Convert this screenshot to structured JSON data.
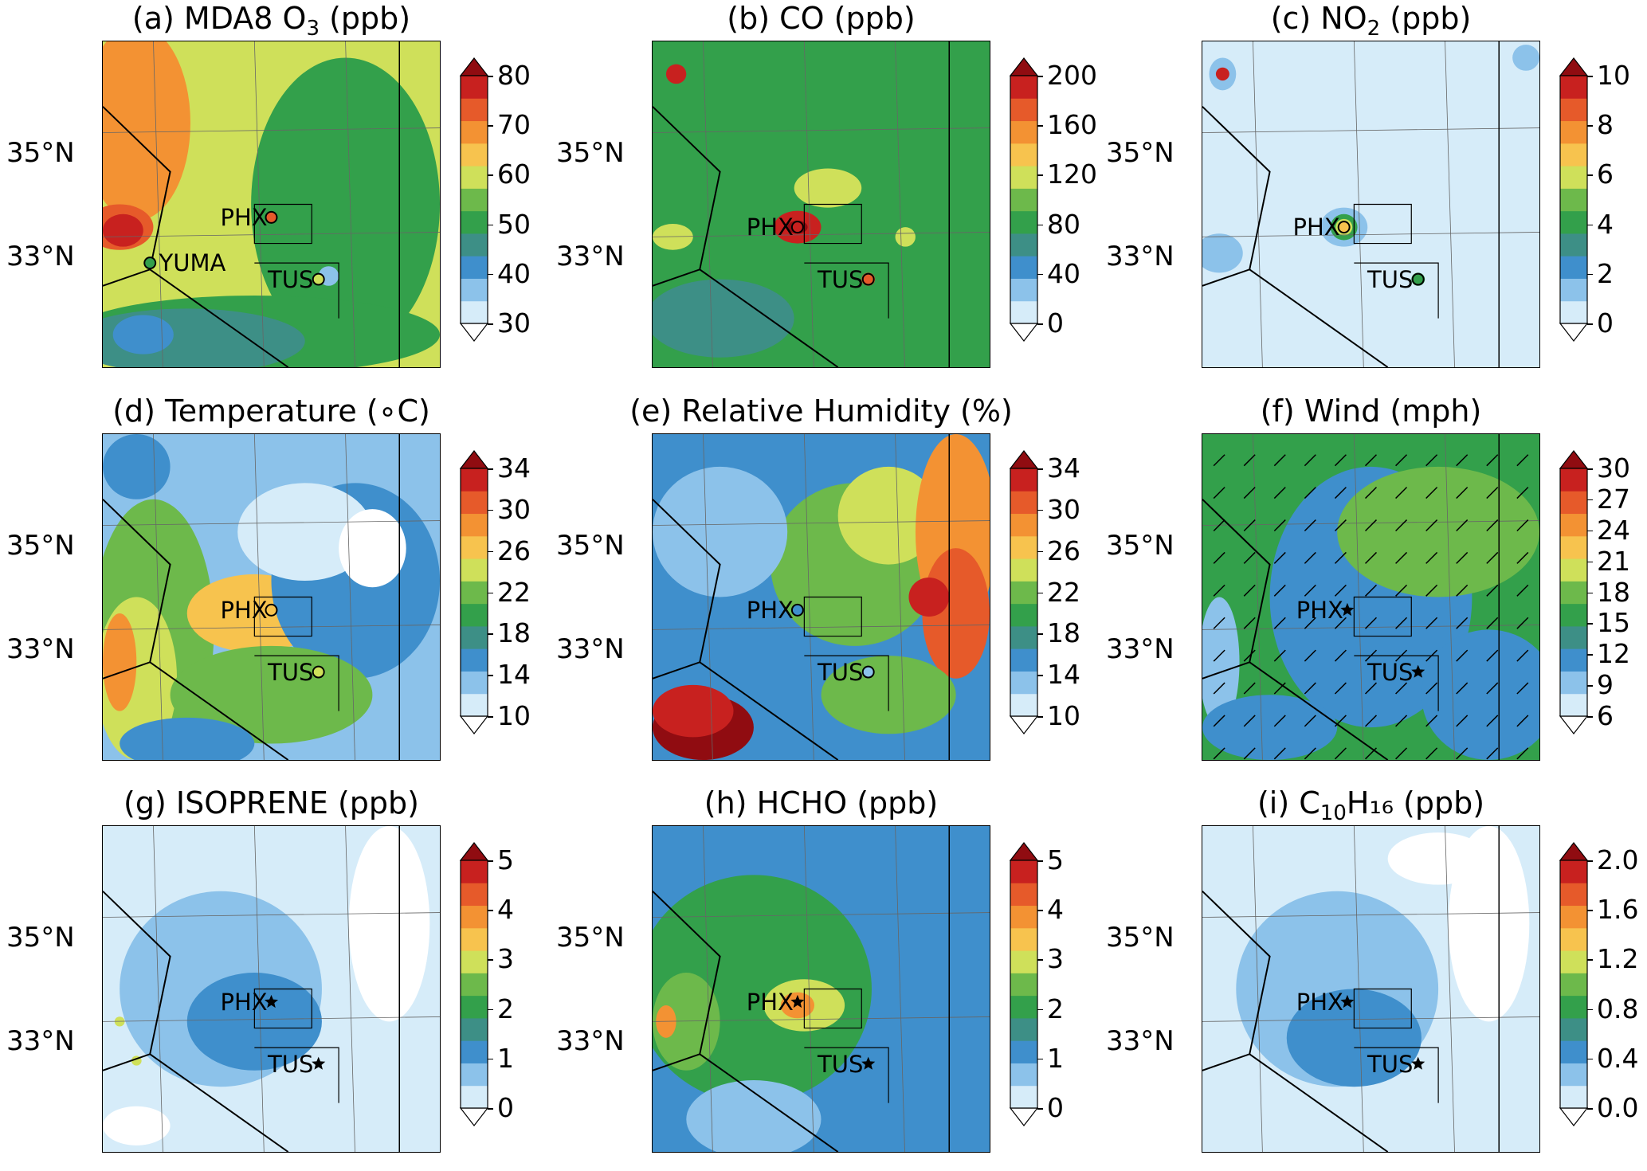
{
  "panels": [
    {
      "id": "a",
      "title_prefix": "(a) MDA8 O",
      "title_sub": "3",
      "title_suffix": " (ppb)",
      "ticks": [
        "80",
        "70",
        "60",
        "50",
        "40",
        "30"
      ],
      "colors": [
        "#ffffff",
        "#d6ecf9",
        "#8cc2ea",
        "#3f8fcc",
        "#3d8f86",
        "#33a04b",
        "#6db94b",
        "#cfe05a",
        "#f7c34e",
        "#f39233",
        "#e65a2a",
        "#c8211f",
        "#900c11"
      ],
      "map": {
        "base": "#cfe05a",
        "blobs": [
          [
            "#f39233",
            0.1,
            0.25,
            0.16,
            0.3
          ],
          [
            "#f39233",
            0.65,
            0.45,
            0.16,
            0.1
          ],
          [
            "#e65a2a",
            0.64,
            0.43,
            0.08,
            0.06
          ],
          [
            "#e65a2a",
            0.05,
            0.57,
            0.1,
            0.07
          ],
          [
            "#c8211f",
            0.06,
            0.58,
            0.06,
            0.05
          ],
          [
            "#33a04b",
            0.72,
            0.5,
            0.28,
            0.45
          ],
          [
            "#33a04b",
            0.45,
            0.9,
            0.55,
            0.12
          ],
          [
            "#3d8f86",
            0.25,
            0.92,
            0.35,
            0.1
          ],
          [
            "#3f8fcc",
            0.12,
            0.9,
            0.09,
            0.06
          ],
          [
            "#8cc2ea",
            0.67,
            0.72,
            0.03,
            0.03
          ]
        ]
      },
      "markers": [
        {
          "label": "PHX",
          "shape": "circle",
          "x": 0.5,
          "y": 0.54,
          "fill": "#e65a2a"
        },
        {
          "label": "YUMA",
          "shape": "circle",
          "x": 0.14,
          "y": 0.68,
          "fill": "#33a04b"
        },
        {
          "label": "TUS",
          "shape": "circle",
          "x": 0.64,
          "y": 0.73,
          "fill": "#cfe05a"
        }
      ]
    },
    {
      "id": "b",
      "title_prefix": "(b) CO (ppb)",
      "title_sub": "",
      "title_suffix": "",
      "ticks": [
        "200",
        "160",
        "120",
        "80",
        "40",
        "0"
      ],
      "colors": [
        "#ffffff",
        "#d6ecf9",
        "#8cc2ea",
        "#3f8fcc",
        "#3d8f86",
        "#33a04b",
        "#6db94b",
        "#cfe05a",
        "#f7c34e",
        "#f39233",
        "#e65a2a",
        "#c8211f",
        "#900c11"
      ],
      "map": {
        "base": "#33a04b",
        "blobs": [
          [
            "#cfe05a",
            0.52,
            0.45,
            0.1,
            0.06
          ],
          [
            "#c8211f",
            0.43,
            0.57,
            0.07,
            0.05
          ],
          [
            "#900c11",
            0.43,
            0.57,
            0.03,
            0.02
          ],
          [
            "#c8211f",
            0.07,
            0.1,
            0.03,
            0.03
          ],
          [
            "#cfe05a",
            0.06,
            0.6,
            0.06,
            0.04
          ],
          [
            "#3d8f86",
            0.2,
            0.85,
            0.22,
            0.12
          ],
          [
            "#e65a2a",
            0.64,
            0.73,
            0.02,
            0.02
          ],
          [
            "#cfe05a",
            0.75,
            0.6,
            0.03,
            0.03
          ]
        ]
      },
      "markers": [
        {
          "label": "PHX",
          "shape": "circle",
          "x": 0.43,
          "y": 0.57,
          "fill": "#c8211f"
        },
        {
          "label": "TUS",
          "shape": "circle",
          "x": 0.64,
          "y": 0.73,
          "fill": "#e65a2a"
        }
      ]
    },
    {
      "id": "c",
      "title_prefix": "(c) NO",
      "title_sub": "2",
      "title_suffix": " (ppb)",
      "ticks": [
        "10",
        "8",
        "6",
        "4",
        "2",
        "0"
      ],
      "colors": [
        "#ffffff",
        "#d6ecf9",
        "#8cc2ea",
        "#3f8fcc",
        "#3d8f86",
        "#33a04b",
        "#6db94b",
        "#cfe05a",
        "#f7c34e",
        "#f39233",
        "#e65a2a",
        "#c8211f",
        "#900c11"
      ],
      "map": {
        "base": "#d6ecf9",
        "blobs": [
          [
            "#8cc2ea",
            0.42,
            0.57,
            0.07,
            0.06
          ],
          [
            "#33a04b",
            0.42,
            0.57,
            0.04,
            0.04
          ],
          [
            "#cfe05a",
            0.42,
            0.57,
            0.025,
            0.025
          ],
          [
            "#8cc2ea",
            0.06,
            0.1,
            0.04,
            0.05
          ],
          [
            "#c8211f",
            0.06,
            0.1,
            0.02,
            0.02
          ],
          [
            "#8cc2ea",
            0.05,
            0.65,
            0.07,
            0.06
          ],
          [
            "#8cc2ea",
            0.96,
            0.05,
            0.04,
            0.04
          ],
          [
            "#33a04b",
            0.64,
            0.73,
            0.02,
            0.02
          ]
        ]
      },
      "markers": [
        {
          "label": "PHX",
          "shape": "circle",
          "x": 0.42,
          "y": 0.57,
          "fill": "#f7c34e"
        },
        {
          "label": "TUS",
          "shape": "circle",
          "x": 0.64,
          "y": 0.73,
          "fill": "#33a04b"
        }
      ]
    },
    {
      "id": "d",
      "title_prefix": "(d) Temperature (",
      "title_sub": "",
      "title_suffix": "∘C)",
      "ticks": [
        "34",
        "30",
        "26",
        "22",
        "18",
        "14",
        "10"
      ],
      "colors": [
        "#ffffff",
        "#d6ecf9",
        "#8cc2ea",
        "#3f8fcc",
        "#3d8f86",
        "#33a04b",
        "#6db94b",
        "#cfe05a",
        "#f7c34e",
        "#f39233",
        "#e65a2a",
        "#c8211f",
        "#900c11"
      ],
      "map": {
        "base": "#8cc2ea",
        "blobs": [
          [
            "#6db94b",
            0.15,
            0.6,
            0.18,
            0.4
          ],
          [
            "#cfe05a",
            0.1,
            0.75,
            0.12,
            0.25
          ],
          [
            "#f7c34e",
            0.45,
            0.55,
            0.2,
            0.12
          ],
          [
            "#f39233",
            0.05,
            0.7,
            0.05,
            0.15
          ],
          [
            "#3f8fcc",
            0.75,
            0.45,
            0.25,
            0.3
          ],
          [
            "#d6ecf9",
            0.6,
            0.3,
            0.2,
            0.15
          ],
          [
            "#ffffff",
            0.8,
            0.35,
            0.1,
            0.12
          ],
          [
            "#6db94b",
            0.5,
            0.8,
            0.3,
            0.15
          ],
          [
            "#3f8fcc",
            0.25,
            0.95,
            0.2,
            0.08
          ],
          [
            "#3f8fcc",
            0.1,
            0.1,
            0.1,
            0.1
          ]
        ]
      },
      "markers": [
        {
          "label": "PHX",
          "shape": "circle",
          "x": 0.5,
          "y": 0.54,
          "fill": "#f7c34e"
        },
        {
          "label": "TUS",
          "shape": "circle",
          "x": 0.64,
          "y": 0.73,
          "fill": "#cfe05a"
        }
      ]
    },
    {
      "id": "e",
      "title_prefix": "(e) Relative Humidity (%)",
      "title_sub": "",
      "title_suffix": "",
      "ticks": [
        "34",
        "30",
        "26",
        "22",
        "18",
        "14",
        "10"
      ],
      "colors": [
        "#ffffff",
        "#d6ecf9",
        "#8cc2ea",
        "#3f8fcc",
        "#3d8f86",
        "#33a04b",
        "#6db94b",
        "#cfe05a",
        "#f7c34e",
        "#f39233",
        "#e65a2a",
        "#c8211f",
        "#900c11"
      ],
      "map": {
        "base": "#3f8fcc",
        "blobs": [
          [
            "#6db94b",
            0.6,
            0.4,
            0.25,
            0.25
          ],
          [
            "#cfe05a",
            0.7,
            0.25,
            0.15,
            0.15
          ],
          [
            "#f39233",
            0.9,
            0.3,
            0.12,
            0.3
          ],
          [
            "#e65a2a",
            0.9,
            0.55,
            0.1,
            0.2
          ],
          [
            "#c8211f",
            0.82,
            0.5,
            0.06,
            0.06
          ],
          [
            "#900c11",
            0.15,
            0.9,
            0.15,
            0.1
          ],
          [
            "#c8211f",
            0.12,
            0.85,
            0.12,
            0.08
          ],
          [
            "#8cc2ea",
            0.2,
            0.3,
            0.2,
            0.2
          ],
          [
            "#6db94b",
            0.7,
            0.8,
            0.2,
            0.12
          ]
        ]
      },
      "markers": [
        {
          "label": "PHX",
          "shape": "circle",
          "x": 0.43,
          "y": 0.54,
          "fill": "#3f8fcc"
        },
        {
          "label": "TUS",
          "shape": "circle",
          "x": 0.64,
          "y": 0.73,
          "fill": "#8cc2ea"
        }
      ]
    },
    {
      "id": "f",
      "title_prefix": "(f) Wind (mph)",
      "title_sub": "",
      "title_suffix": "",
      "ticks": [
        "30",
        "27",
        "24",
        "21",
        "18",
        "15",
        "12",
        "9",
        "6"
      ],
      "colors": [
        "#ffffff",
        "#d6ecf9",
        "#8cc2ea",
        "#3f8fcc",
        "#3d8f86",
        "#33a04b",
        "#6db94b",
        "#cfe05a",
        "#f7c34e",
        "#f39233",
        "#e65a2a",
        "#c8211f",
        "#900c11"
      ],
      "map": {
        "base": "#33a04b",
        "blobs": [
          [
            "#3f8fcc",
            0.5,
            0.5,
            0.3,
            0.4
          ],
          [
            "#3f8fcc",
            0.85,
            0.8,
            0.2,
            0.2
          ],
          [
            "#cfe05a",
            0.6,
            0.25,
            0.15,
            0.05
          ],
          [
            "#6db94b",
            0.7,
            0.3,
            0.3,
            0.2
          ],
          [
            "#8cc2ea",
            0.05,
            0.7,
            0.06,
            0.2
          ],
          [
            "#3f8fcc",
            0.2,
            0.9,
            0.2,
            0.1
          ]
        ]
      },
      "markers": [
        {
          "label": "PHX",
          "shape": "star",
          "x": 0.43,
          "y": 0.54,
          "fill": "#000000"
        },
        {
          "label": "TUS",
          "shape": "star",
          "x": 0.64,
          "y": 0.73,
          "fill": "#000000"
        }
      ]
    },
    {
      "id": "g",
      "title_prefix": "(g) ISOPRENE (ppb)",
      "title_sub": "",
      "title_suffix": "",
      "ticks": [
        "5",
        "4",
        "3",
        "2",
        "1",
        "0"
      ],
      "colors": [
        "#ffffff",
        "#d6ecf9",
        "#8cc2ea",
        "#3f8fcc",
        "#3d8f86",
        "#33a04b",
        "#6db94b",
        "#cfe05a",
        "#f7c34e",
        "#f39233",
        "#e65a2a",
        "#c8211f",
        "#900c11"
      ],
      "map": {
        "base": "#d6ecf9",
        "blobs": [
          [
            "#8cc2ea",
            0.35,
            0.5,
            0.3,
            0.3
          ],
          [
            "#3f8fcc",
            0.45,
            0.6,
            0.2,
            0.15
          ],
          [
            "#ffffff",
            0.85,
            0.3,
            0.12,
            0.3
          ],
          [
            "#ffffff",
            0.1,
            0.92,
            0.1,
            0.06
          ],
          [
            "#cfe05a",
            0.05,
            0.6,
            0.015,
            0.015
          ],
          [
            "#cfe05a",
            0.1,
            0.72,
            0.015,
            0.015
          ]
        ]
      },
      "markers": [
        {
          "label": "PHX",
          "shape": "star",
          "x": 0.5,
          "y": 0.54,
          "fill": "#000000"
        },
        {
          "label": "TUS",
          "shape": "star",
          "x": 0.64,
          "y": 0.73,
          "fill": "#000000"
        }
      ]
    },
    {
      "id": "h",
      "title_prefix": "(h) HCHO (ppb)",
      "title_sub": "",
      "title_suffix": "",
      "ticks": [
        "5",
        "4",
        "3",
        "2",
        "1",
        "0"
      ],
      "colors": [
        "#ffffff",
        "#d6ecf9",
        "#8cc2ea",
        "#3f8fcc",
        "#3d8f86",
        "#33a04b",
        "#6db94b",
        "#cfe05a",
        "#f7c34e",
        "#f39233",
        "#e65a2a",
        "#c8211f",
        "#900c11"
      ],
      "map": {
        "base": "#3f8fcc",
        "blobs": [
          [
            "#33a04b",
            0.3,
            0.5,
            0.35,
            0.35
          ],
          [
            "#6db94b",
            0.1,
            0.6,
            0.1,
            0.15
          ],
          [
            "#cfe05a",
            0.45,
            0.55,
            0.12,
            0.08
          ],
          [
            "#f39233",
            0.43,
            0.55,
            0.05,
            0.04
          ],
          [
            "#f39233",
            0.04,
            0.6,
            0.03,
            0.05
          ],
          [
            "#8cc2ea",
            0.3,
            0.9,
            0.2,
            0.12
          ]
        ]
      },
      "markers": [
        {
          "label": "PHX",
          "shape": "star",
          "x": 0.43,
          "y": 0.54,
          "fill": "#000000"
        },
        {
          "label": "TUS",
          "shape": "star",
          "x": 0.64,
          "y": 0.73,
          "fill": "#000000"
        }
      ]
    },
    {
      "id": "i",
      "title_prefix": "(i) C",
      "title_sub": "10",
      "title_suffix": "H₁₆ (ppb)",
      "ticks": [
        "2.0",
        "1.6",
        "1.2",
        "0.8",
        "0.4",
        "0.0"
      ],
      "colors": [
        "#ffffff",
        "#d6ecf9",
        "#8cc2ea",
        "#3f8fcc",
        "#3d8f86",
        "#33a04b",
        "#6db94b",
        "#cfe05a",
        "#f7c34e",
        "#f39233",
        "#e65a2a",
        "#c8211f",
        "#900c11"
      ],
      "map": {
        "base": "#d6ecf9",
        "blobs": [
          [
            "#8cc2ea",
            0.4,
            0.5,
            0.3,
            0.3
          ],
          [
            "#3f8fcc",
            0.45,
            0.65,
            0.2,
            0.15
          ],
          [
            "#ffffff",
            0.85,
            0.3,
            0.12,
            0.3
          ],
          [
            "#ffffff",
            0.7,
            0.1,
            0.15,
            0.08
          ]
        ]
      },
      "markers": [
        {
          "label": "PHX",
          "shape": "star",
          "x": 0.43,
          "y": 0.54,
          "fill": "#000000"
        },
        {
          "label": "TUS",
          "shape": "star",
          "x": 0.64,
          "y": 0.73,
          "fill": "#000000"
        }
      ]
    }
  ],
  "lat_labels": [
    "35°N",
    "33°N"
  ]
}
